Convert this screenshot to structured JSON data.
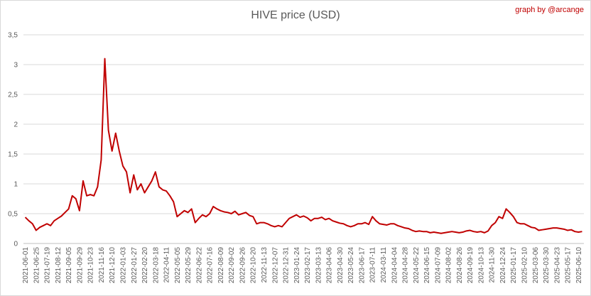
{
  "chart_data": {
    "type": "line",
    "title": "HIVE price (USD)",
    "annotation": "graph by @arcange",
    "categories": [
      "2021-06-01",
      null,
      null,
      "2021-06-25",
      null,
      null,
      "2021-07-19",
      null,
      null,
      "2021-08-12",
      null,
      null,
      "2021-09-05",
      null,
      null,
      "2021-09-29",
      null,
      null,
      "2021-10-23",
      null,
      null,
      "2021-11-16",
      null,
      null,
      "2021-12-10",
      null,
      null,
      "2022-01-03",
      null,
      null,
      "2022-01-27",
      null,
      null,
      "2022-02-20",
      null,
      null,
      "2022-03-18",
      null,
      null,
      "2022-04-11",
      null,
      null,
      "2022-05-05",
      null,
      null,
      "2022-05-29",
      null,
      null,
      "2022-06-22",
      null,
      null,
      "2022-07-16",
      null,
      null,
      "2022-08-09",
      null,
      null,
      "2022-09-02",
      null,
      null,
      "2022-09-26",
      null,
      null,
      "2022-10-20",
      null,
      null,
      "2022-11-13",
      null,
      null,
      "2022-12-07",
      null,
      null,
      "2022-12-31",
      null,
      null,
      "2023-01-24",
      null,
      null,
      "2023-02-17",
      null,
      null,
      "2023-03-13",
      null,
      null,
      "2023-04-06",
      null,
      null,
      "2023-04-30",
      null,
      null,
      "2023-05-24",
      null,
      null,
      "2023-06-17",
      null,
      null,
      "2023-07-11",
      null,
      null,
      "2024-03-11",
      null,
      null,
      "2024-04-04",
      null,
      null,
      "2024-04-28",
      null,
      null,
      "2024-05-22",
      null,
      null,
      "2024-06-15",
      null,
      null,
      "2024-07-09",
      null,
      null,
      "2024-08-02",
      null,
      null,
      "2024-08-26",
      null,
      null,
      "2024-09-19",
      null,
      null,
      "2024-10-13",
      null,
      null,
      "2024-11-30",
      null,
      null,
      "2024-12-24",
      null,
      null,
      "2025-01-17",
      null,
      null,
      "2025-02-10",
      null,
      null,
      "2025-03-06",
      null,
      null,
      "2025-03-30",
      null,
      null,
      "2025-04-23",
      null,
      null,
      "2025-05-17",
      null,
      null,
      "2025-06-10",
      null
    ],
    "series": [
      {
        "color": "#c00000",
        "values": [
          0.44,
          0.38,
          0.33,
          0.22,
          0.27,
          0.3,
          0.33,
          0.3,
          0.38,
          0.42,
          0.46,
          0.52,
          0.58,
          0.8,
          0.75,
          0.55,
          1.05,
          0.8,
          0.82,
          0.8,
          0.95,
          1.4,
          3.1,
          1.9,
          1.55,
          1.85,
          1.55,
          1.3,
          1.2,
          0.85,
          1.15,
          0.9,
          1.0,
          0.85,
          0.95,
          1.05,
          1.2,
          0.95,
          0.9,
          0.88,
          0.8,
          0.7,
          0.45,
          0.5,
          0.55,
          0.52,
          0.58,
          0.35,
          0.42,
          0.48,
          0.45,
          0.5,
          0.62,
          0.58,
          0.55,
          0.53,
          0.52,
          0.5,
          0.54,
          0.48,
          0.5,
          0.52,
          0.47,
          0.45,
          0.33,
          0.35,
          0.35,
          0.33,
          0.3,
          0.28,
          0.3,
          0.28,
          0.35,
          0.42,
          0.45,
          0.48,
          0.44,
          0.46,
          0.43,
          0.38,
          0.42,
          0.42,
          0.44,
          0.4,
          0.42,
          0.38,
          0.36,
          0.34,
          0.33,
          0.3,
          0.28,
          0.3,
          0.33,
          0.33,
          0.35,
          0.32,
          0.45,
          0.38,
          0.33,
          0.32,
          0.31,
          0.33,
          0.33,
          0.3,
          0.28,
          0.26,
          0.25,
          0.22,
          0.2,
          0.21,
          0.2,
          0.2,
          0.18,
          0.19,
          0.18,
          0.17,
          0.18,
          0.19,
          0.2,
          0.19,
          0.18,
          0.19,
          0.21,
          0.22,
          0.2,
          0.19,
          0.2,
          0.18,
          0.21,
          0.3,
          0.35,
          0.45,
          0.42,
          0.58,
          0.52,
          0.45,
          0.35,
          0.33,
          0.33,
          0.3,
          0.27,
          0.26,
          0.22,
          0.23,
          0.24,
          0.25,
          0.26,
          0.26,
          0.25,
          0.24,
          0.22,
          0.23,
          0.2,
          0.19,
          0.2
        ]
      }
    ],
    "ylim": [
      0,
      3.5
    ],
    "yticks": [
      0,
      {
        "value": 0.5,
        "label": "0,5"
      },
      1,
      {
        "value": 1.5,
        "label": "1,5"
      },
      2,
      {
        "value": 2.5,
        "label": "2,5"
      },
      3,
      {
        "value": 3.5,
        "label": "3,5"
      }
    ],
    "grid": true
  }
}
